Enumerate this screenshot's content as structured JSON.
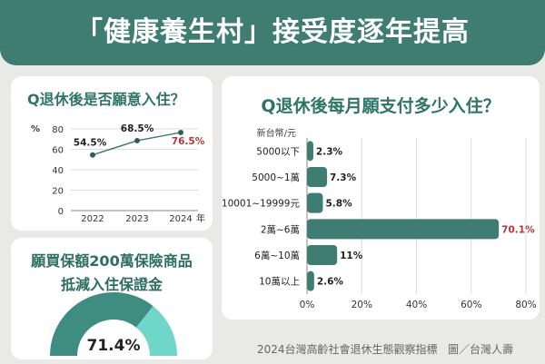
{
  "header": {
    "title": "「健康養生村」接受度逐年提高"
  },
  "chart_data": [
    {
      "type": "line",
      "title": "Q退休後是否願意入住？",
      "ylabel": "%",
      "xlabel": "年",
      "ylim": [
        0,
        80
      ],
      "yticks": [
        "0",
        "20",
        "40",
        "60",
        "80"
      ],
      "categories": [
        "2022",
        "2023",
        "2024"
      ],
      "values": [
        54.5,
        68.5,
        76.5
      ],
      "point_labels": [
        "54.5%",
        "68.5%",
        "76.5%"
      ],
      "grid": true,
      "colors": {
        "line": "#3f7c72",
        "point": "#2d5f55",
        "highlight_label": "#b5363a"
      }
    },
    {
      "type": "gauge",
      "title": "願買保額200萬保險商品",
      "subtitle": "抵減入住保證金",
      "value": 71.4,
      "label": "71.4%",
      "colors": {
        "filled": "#3f8c80",
        "rest": "#6fd6c9"
      }
    },
    {
      "type": "bar",
      "orientation": "horizontal",
      "title": "Q退休後每月願支付多少入住？",
      "unit_label": "新台幣/元",
      "categories": [
        "5000以下",
        "5000~1萬",
        "10001~19999元",
        "2萬~6萬",
        "6萬~10萬",
        "10萬以上"
      ],
      "values": [
        2.3,
        7.3,
        5.8,
        70.1,
        11,
        2.6
      ],
      "value_labels": [
        "2.3%",
        "7.3%",
        "5.8%",
        "70.1%",
        "11%",
        "2.6%"
      ],
      "xlim": [
        0,
        80
      ],
      "xticks": [
        "0%",
        "20%",
        "40%",
        "60%",
        "80%"
      ],
      "grid": true,
      "colors": {
        "bar": "#3f7c72",
        "highlight_label": "#b5363a"
      }
    }
  ],
  "footer": {
    "source": "2024台灣高齡社會退休生態觀察指標",
    "credit": "圖／台灣人壽"
  }
}
